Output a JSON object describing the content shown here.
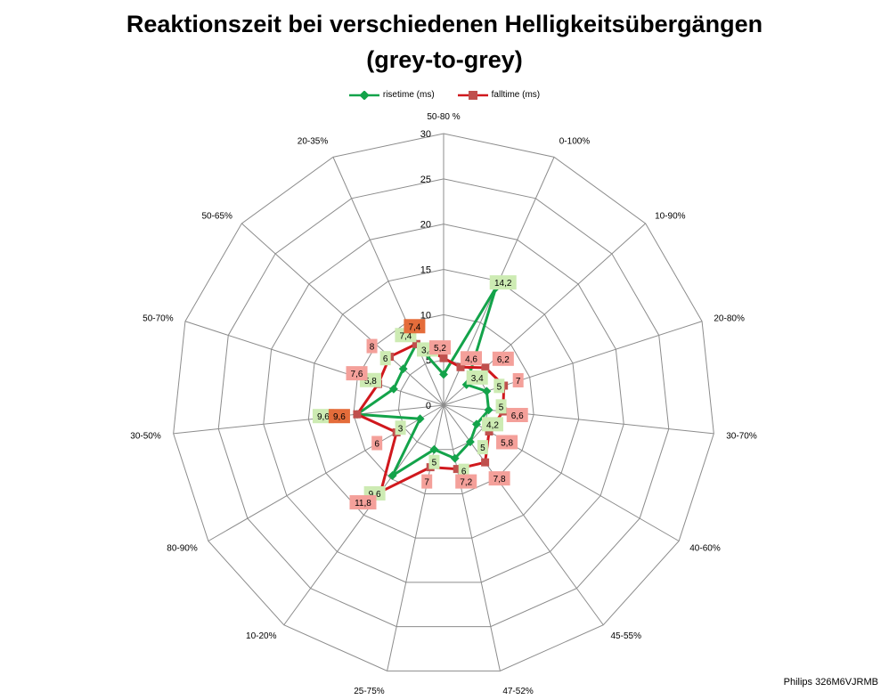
{
  "chart_data": {
    "type": "radar",
    "title": "Reaktionszeit bei verschiedenen Helligkeitsübergängen",
    "subtitle": "(grey-to-grey)",
    "categories": [
      "50-80 %",
      "0-100%",
      "10-90%",
      "20-80%",
      "30-70%",
      "40-60%",
      "45-55%",
      "47-52%",
      "25-75%",
      "10-20%",
      "80-90%",
      "30-50%",
      "50-70%",
      "50-65%",
      "20-35%"
    ],
    "rlim": [
      0,
      30
    ],
    "ticks": [
      "0",
      "5",
      "10",
      "15",
      "20",
      "25",
      "30"
    ],
    "tick_values": [
      0,
      5,
      10,
      15,
      20,
      25,
      30
    ],
    "legend_position": "top",
    "series": [
      {
        "name": "risetime (ms)",
        "color": "#13A34A",
        "label_color": "#CDEBB3",
        "values": [
          3.4,
          14.2,
          3.4,
          5,
          5,
          4.2,
          5,
          6,
          5,
          9.6,
          3,
          9.6,
          5.8,
          6,
          7.4
        ],
        "labels": [
          "3,4",
          "14,2",
          "3,4",
          "5",
          "5",
          "4,2",
          "5",
          "6",
          "5",
          "9,6",
          "3",
          "9,6",
          "5,8",
          "6",
          "7,4"
        ]
      },
      {
        "name": "falltime (ms)",
        "color": "#D0181D",
        "label_color": "#F4A09A",
        "values": [
          5.2,
          4.6,
          6.2,
          7,
          6.6,
          5.8,
          7.8,
          7.2,
          7,
          11.8,
          6,
          9.6,
          7.6,
          8,
          7.4
        ],
        "labels": [
          "5,2",
          "4,6",
          "6,2",
          "7",
          "6,6",
          "5,8",
          "7,8",
          "7,2",
          "7",
          "11,8",
          "6",
          "9,6",
          "7,6",
          "8",
          "7,4"
        ]
      }
    ]
  },
  "footer": "Philips 326M6VJRMB"
}
